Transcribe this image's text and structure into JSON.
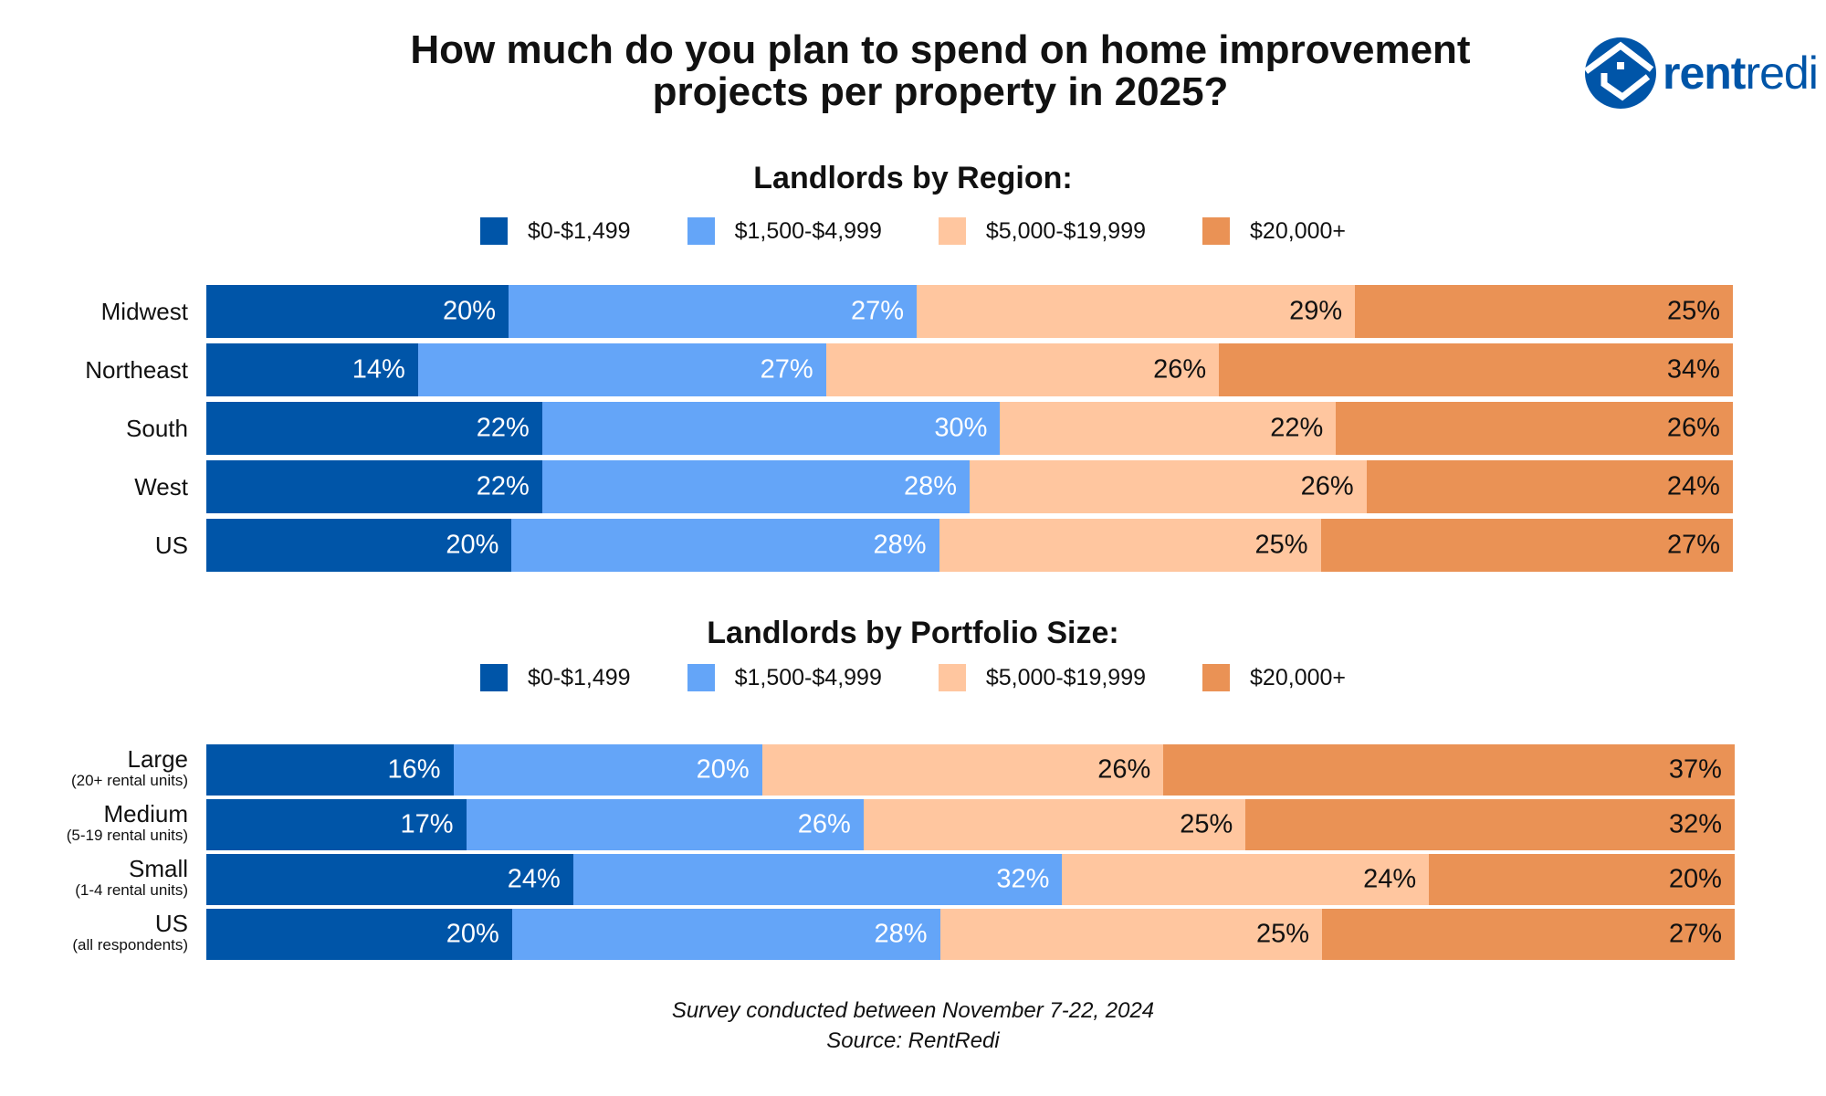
{
  "title_line1": "How much do you plan to spend on home improvement",
  "title_line2": "projects per property in 2025?",
  "logo": {
    "text_bold": "rent",
    "text_light": "redi",
    "icon": "house-in-circle-icon",
    "color": "#0055A8"
  },
  "footer": {
    "line1": "Survey conducted between November 7-22, 2024",
    "line2": "Source: RentRedi"
  },
  "chart_data": [
    {
      "type": "bar",
      "orientation": "horizontal",
      "stacked": true,
      "title": "Landlords by Region:",
      "legend_placement": "top",
      "categories": [
        {
          "label": "Midwest",
          "sub": ""
        },
        {
          "label": "Northeast",
          "sub": ""
        },
        {
          "label": "South",
          "sub": ""
        },
        {
          "label": "West",
          "sub": ""
        },
        {
          "label": "US",
          "sub": ""
        }
      ],
      "series": [
        {
          "name": "$0-$1,499",
          "color": "#0055A8",
          "label_color": "#ffffff",
          "values": [
            20,
            14,
            22,
            22,
            20
          ]
        },
        {
          "name": "$1,500-$4,999",
          "color": "#64A5F8",
          "label_color": "#ffffff",
          "values": [
            27,
            27,
            30,
            28,
            28
          ]
        },
        {
          "name": "$5,000-$19,999",
          "color": "#FFC69F",
          "label_color": "#111111",
          "values": [
            29,
            26,
            22,
            26,
            25
          ]
        },
        {
          "name": "$20,000+",
          "color": "#EA9255",
          "label_color": "#111111",
          "values": [
            25,
            34,
            26,
            24,
            27
          ]
        }
      ],
      "unit": "%"
    },
    {
      "type": "bar",
      "orientation": "horizontal",
      "stacked": true,
      "title": "Landlords by Portfolio Size:",
      "legend_placement": "top",
      "categories": [
        {
          "label": "Large",
          "sub": "(20+ rental units)"
        },
        {
          "label": "Medium",
          "sub": "(5-19 rental units)"
        },
        {
          "label": "Small",
          "sub": "(1-4 rental units)"
        },
        {
          "label": "US",
          "sub": "(all respondents)"
        }
      ],
      "series": [
        {
          "name": "$0-$1,499",
          "color": "#0055A8",
          "label_color": "#ffffff",
          "values": [
            16,
            17,
            24,
            20
          ]
        },
        {
          "name": "$1,500-$4,999",
          "color": "#64A5F8",
          "label_color": "#ffffff",
          "values": [
            20,
            26,
            32,
            28
          ]
        },
        {
          "name": "$5,000-$19,999",
          "color": "#FFC69F",
          "label_color": "#111111",
          "values": [
            26,
            25,
            24,
            25
          ]
        },
        {
          "name": "$20,000+",
          "color": "#EA9255",
          "label_color": "#111111",
          "values": [
            37,
            32,
            20,
            27
          ]
        }
      ],
      "unit": "%"
    }
  ]
}
